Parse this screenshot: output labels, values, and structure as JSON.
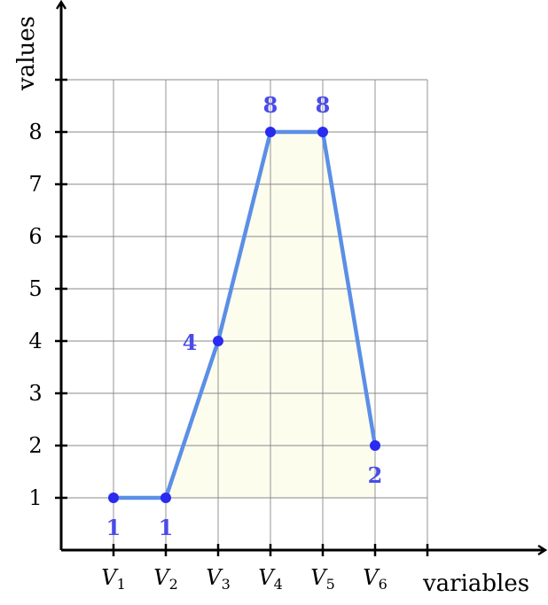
{
  "chart_data": {
    "type": "line",
    "categories": [
      "V1",
      "V2",
      "V3",
      "V4",
      "V5",
      "V6"
    ],
    "category_labels": [
      {
        "main": "V",
        "sub": "1"
      },
      {
        "main": "V",
        "sub": "2"
      },
      {
        "main": "V",
        "sub": "3"
      },
      {
        "main": "V",
        "sub": "4"
      },
      {
        "main": "V",
        "sub": "5"
      },
      {
        "main": "V",
        "sub": "6"
      }
    ],
    "values": [
      1,
      1,
      4,
      8,
      8,
      2
    ],
    "data_labels": [
      "1",
      "1",
      "4",
      "8",
      "8",
      "2"
    ],
    "data_label_positions": [
      "below",
      "below",
      "left",
      "above",
      "above",
      "below"
    ],
    "y_ticks": [
      1,
      2,
      3,
      4,
      5,
      6,
      7,
      8
    ],
    "y_tick_labels": [
      "1",
      "2",
      "3",
      "4",
      "5",
      "6",
      "7",
      "8"
    ],
    "xlabel": "variables",
    "ylabel": "values",
    "ylim": [
      0,
      9
    ],
    "x_slots": 7,
    "grid": true,
    "fill_under_line": true
  },
  "colors": {
    "line": "#5b8fe6",
    "point": "#2a2af0",
    "label": "#4b4be8",
    "fill": "#fdfdee",
    "grid": "#888888",
    "axis": "#000000"
  }
}
